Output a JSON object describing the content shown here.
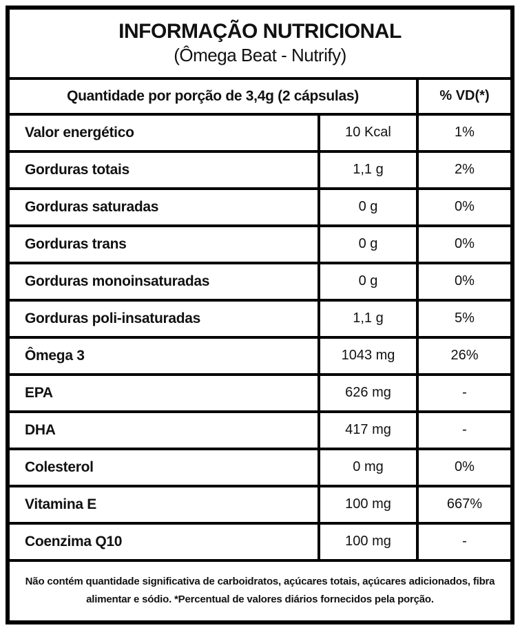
{
  "title_box": {
    "title": "INFORMAÇÃO NUTRICIONAL",
    "subtitle": "(Ômega Beat - Nutrify)"
  },
  "table": {
    "header": {
      "serving_label": "Quantidade por porção de 3,4g (2 cápsulas)",
      "dv_label": "% VD(*)"
    },
    "rows": [
      {
        "name": "Valor energético",
        "amount": "10 Kcal",
        "dv": "1%"
      },
      {
        "name": "Gorduras totais",
        "amount": "1,1 g",
        "dv": "2%"
      },
      {
        "name": "Gorduras saturadas",
        "amount": "0 g",
        "dv": "0%"
      },
      {
        "name": "Gorduras trans",
        "amount": "0 g",
        "dv": "0%"
      },
      {
        "name": "Gorduras monoinsaturadas",
        "amount": "0 g",
        "dv": "0%"
      },
      {
        "name": "Gorduras poli-insaturadas",
        "amount": "1,1 g",
        "dv": "5%"
      },
      {
        "name": "Ômega 3",
        "amount": "1043 mg",
        "dv": "26%"
      },
      {
        "name": "EPA",
        "amount": "626 mg",
        "dv": "-"
      },
      {
        "name": "DHA",
        "amount": "417 mg",
        "dv": "-"
      },
      {
        "name": "Colesterol",
        "amount": "0 mg",
        "dv": "0%"
      },
      {
        "name": "Vitamina E",
        "amount": "100 mg",
        "dv": "667%"
      },
      {
        "name": "Coenzima Q10",
        "amount": "100 mg",
        "dv": "-"
      }
    ]
  },
  "footnote": "Não contém quantidade significativa de carboidratos, açúcares totais, açúcares adicionados, fibra alimentar e sódio. *Percentual de valores diários fornecidos pela porção.",
  "colors": {
    "border": "#000000",
    "text": "#111111",
    "background": "#ffffff"
  }
}
